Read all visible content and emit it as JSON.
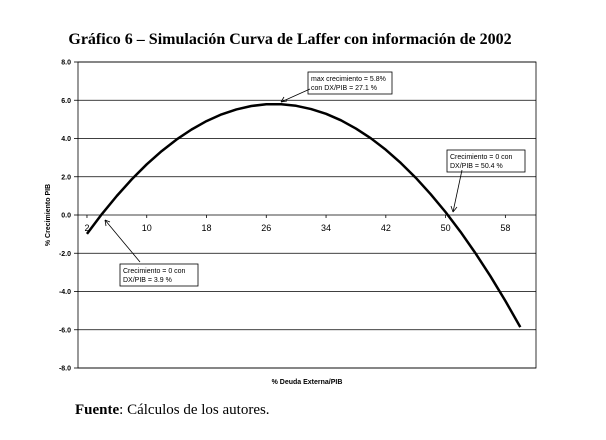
{
  "chart_data": {
    "type": "line",
    "title": "Gráfico 6 – Simulación Curva de Laffer con información  de 2002",
    "x_label": "% Deuda Externa/PIB",
    "y_label": "% Crecimiento PIB",
    "x": [
      2,
      4,
      6,
      8,
      10,
      12,
      14,
      16,
      18,
      20,
      22,
      24,
      26,
      28,
      30,
      32,
      34,
      36,
      38,
      40,
      42,
      44,
      46,
      48,
      50,
      52,
      54,
      56,
      58,
      60
    ],
    "series": [
      {
        "color": "#000000",
        "values": [
          -0.99,
          0.05,
          1.0,
          1.87,
          2.65,
          3.34,
          3.95,
          4.47,
          4.91,
          5.26,
          5.52,
          5.7,
          5.79,
          5.79,
          5.71,
          5.54,
          5.29,
          4.95,
          4.52,
          4.01,
          3.41,
          2.72,
          1.95,
          1.09,
          0.15,
          -0.88,
          -2.0,
          -3.2,
          -4.49,
          -5.86
        ]
      }
    ],
    "xlim": [
      0.8,
      62.1
    ],
    "xticks": [
      2,
      10,
      18,
      26,
      34,
      42,
      50,
      58
    ],
    "ylim": [
      -8,
      8
    ],
    "yticks": [
      {
        "value": 8,
        "label": "8.0"
      },
      {
        "value": 6,
        "label": "6.0"
      },
      {
        "value": 4,
        "label": "4.0"
      },
      {
        "value": 2,
        "label": "2.0"
      },
      {
        "value": 0,
        "label": "0.0"
      },
      {
        "value": -2,
        "label": "-2.0"
      },
      {
        "value": -4,
        "label": "-4.0"
      },
      {
        "value": -6,
        "label": "-6.0"
      },
      {
        "value": -8,
        "label": "-8.0"
      }
    ],
    "grid": true,
    "annotations": [
      {
        "lines": [
          "max crecimiento = 5.8%",
          "con DX/PIB = 27.1 %"
        ]
      },
      {
        "lines": [
          "Crecimiento = 0  con",
          "DX/PIB = 50.4 %"
        ]
      },
      {
        "lines": [
          "Crecimiento = 0  con",
          "DX/PIB = 3.9 %"
        ]
      }
    ],
    "source": {
      "bold": "Fuente",
      "text": ": Cálculos de los autores."
    }
  }
}
